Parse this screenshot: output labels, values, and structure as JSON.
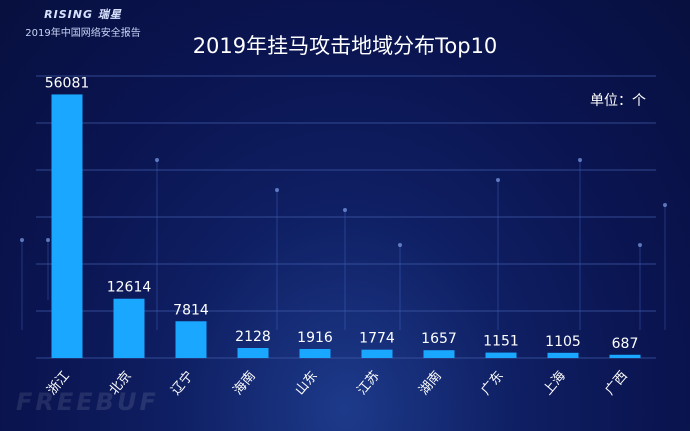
{
  "header": {
    "logo_text": "RISING 瑞星",
    "subtitle": "2019年中国网络安全报告"
  },
  "watermark": "FREEBUF",
  "colors": {
    "bar": "#1aa7ff",
    "gridline": "#3f5aa8",
    "label": "#ffffff"
  },
  "chart_data": {
    "type": "bar",
    "title": "2019年挂马攻击地域分布Top10",
    "unit_label": "单位：个",
    "categories": [
      "浙江",
      "北京",
      "辽宁",
      "海南",
      "山东",
      "江苏",
      "湖南",
      "广东",
      "上海",
      "广西"
    ],
    "values": [
      56081,
      12614,
      7814,
      2128,
      1916,
      1774,
      1657,
      1151,
      1105,
      687
    ],
    "ylim": [
      0,
      60000
    ],
    "grid": true,
    "xlabel": "",
    "ylabel": ""
  }
}
